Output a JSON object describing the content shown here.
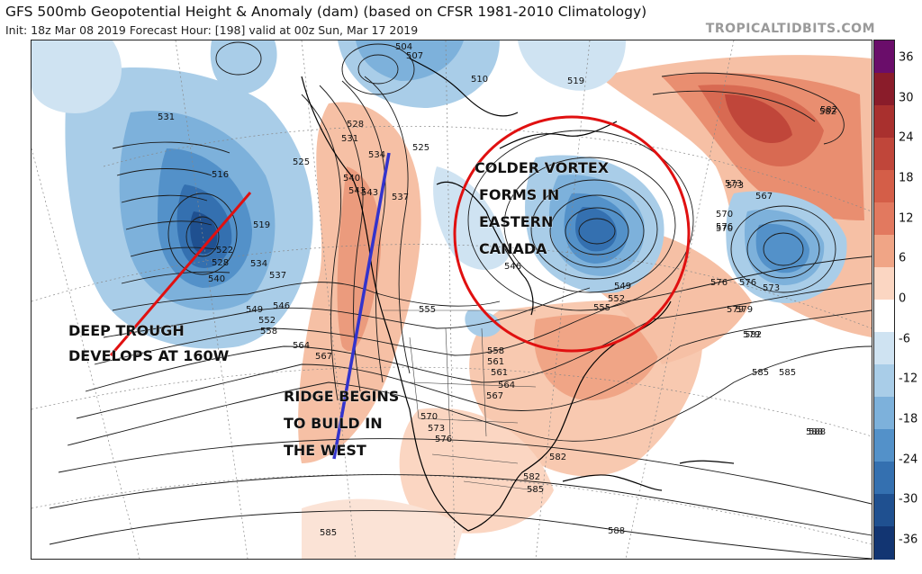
{
  "header": {
    "title": "GFS 500mb Geopotential Height & Anomaly (dam) (based on CFSR 1981-2010 Climatology)",
    "subtitle": "Init: 18z Mar 08 2019   Forecast Hour: [198]   valid at 00z Sun, Mar 17 2019",
    "brand": "TROPICALTIDBITS.COM"
  },
  "colorbar": {
    "ticks": [
      "36",
      "30",
      "24",
      "18",
      "12",
      "6",
      "0",
      "-6",
      "-12",
      "-18",
      "-24",
      "-30",
      "-36"
    ],
    "colors": [
      "#6a0d6a",
      "#8a1c2a",
      "#a9302e",
      "#c0463a",
      "#d45e48",
      "#e2795f",
      "#f0a586",
      "#fbd6c2",
      "#ffffff",
      "#cfe3f2",
      "#a9cde8",
      "#7db1db",
      "#5391c9",
      "#3470b0",
      "#1f5090",
      "#123572"
    ]
  },
  "annotations": {
    "trough_line1": "DEEP TROUGH",
    "trough_line2": "DEVELOPS AT 160W",
    "ridge_line1": "RIDGE BEGINS",
    "ridge_line2": "TO BUILD IN",
    "ridge_line3": "THE WEST",
    "vortex_line1": "COLDER VORTEX",
    "vortex_line2": "FORMS IN",
    "vortex_line3": "EASTERN",
    "vortex_line4": "CANADA"
  },
  "contour_labels": [
    "531",
    "516",
    "519",
    "522",
    "528",
    "534",
    "537",
    "540",
    "543",
    "546",
    "549",
    "552",
    "555",
    "558",
    "561",
    "564",
    "567",
    "570",
    "573",
    "576",
    "579",
    "582",
    "585",
    "588",
    "504",
    "507",
    "510",
    "519",
    "525",
    "525",
    "528",
    "531",
    "534",
    "537",
    "540",
    "543",
    "546",
    "549",
    "552",
    "555",
    "558",
    "561",
    "564",
    "567",
    "570",
    "573",
    "576",
    "579",
    "582",
    "582",
    "585",
    "585",
    "588",
    "570",
    "573",
    "576",
    "567",
    "573",
    "579",
    "582",
    "576",
    "582",
    "585",
    "588"
  ]
}
